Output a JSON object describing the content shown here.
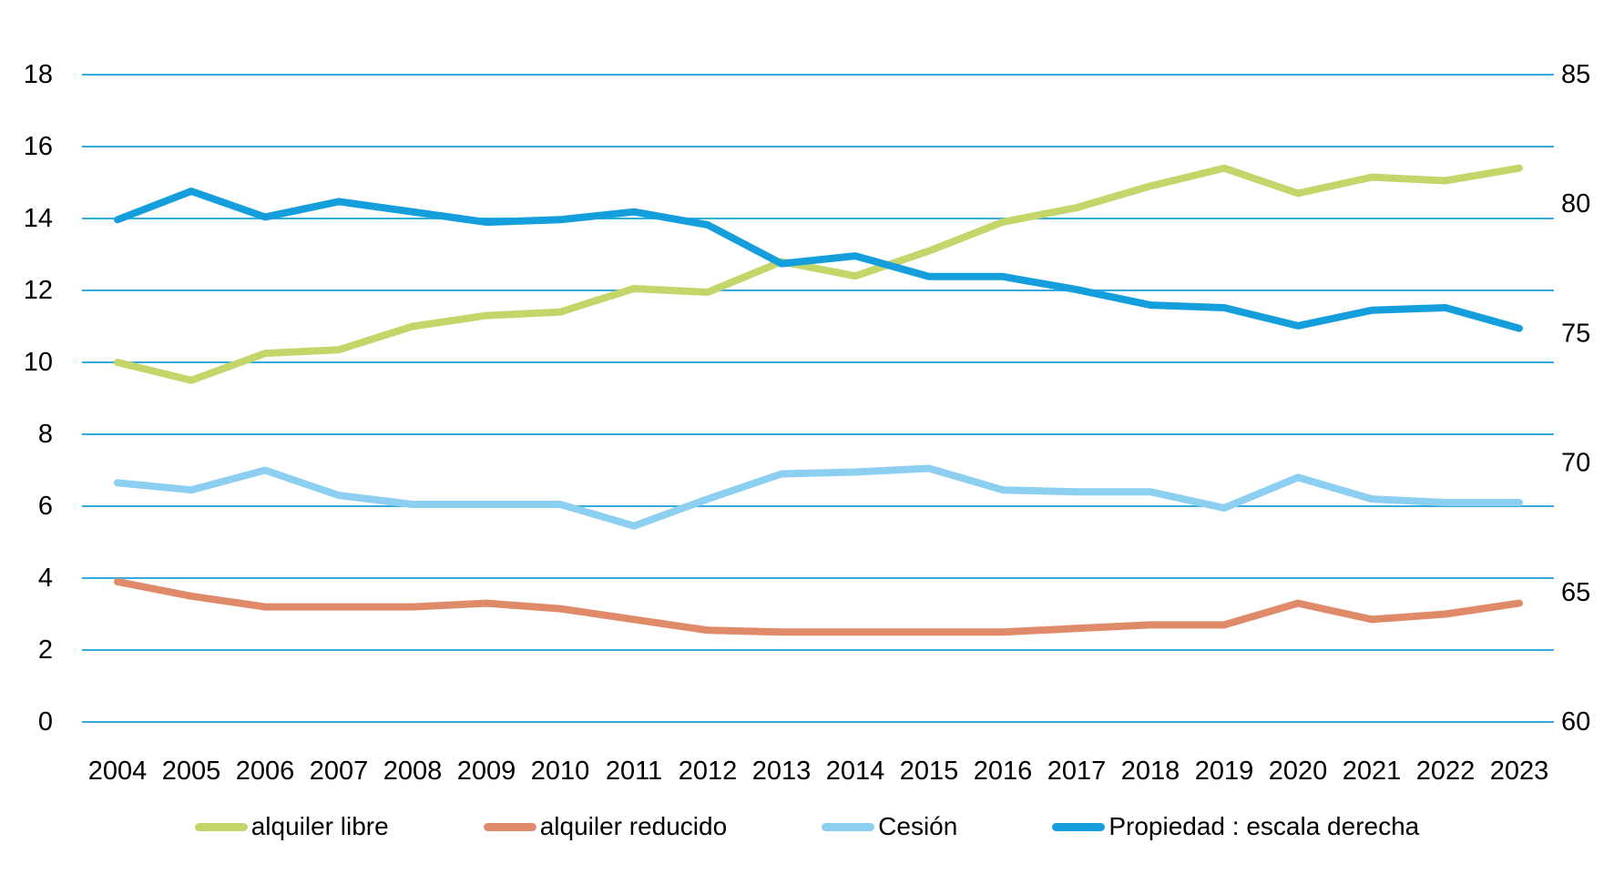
{
  "colors": {
    "background": "#ffffff",
    "gridline": "#33abe1",
    "text": "#000000"
  },
  "chart_data": {
    "type": "line",
    "title": "",
    "xlabel": "",
    "ylabel": "",
    "grid": true,
    "legend_position": "bottom",
    "x": [
      2004,
      2005,
      2006,
      2007,
      2008,
      2009,
      2010,
      2011,
      2012,
      2013,
      2014,
      2015,
      2016,
      2017,
      2018,
      2019,
      2020,
      2021,
      2022,
      2023
    ],
    "left_axis": {
      "min": 0,
      "max": 18,
      "ticks": [
        0,
        2,
        4,
        6,
        8,
        10,
        12,
        14,
        16,
        18
      ]
    },
    "right_axis": {
      "min": 60,
      "max": 85,
      "ticks": [
        60,
        65,
        70,
        75,
        80,
        85
      ]
    },
    "series": [
      {
        "name": "alquiler libre",
        "axis": "left",
        "color": "#c3d669",
        "values": [
          10.0,
          9.5,
          10.25,
          10.35,
          11.0,
          11.3,
          11.4,
          12.05,
          11.95,
          12.8,
          12.4,
          13.1,
          13.9,
          14.3,
          14.9,
          15.4,
          14.7,
          15.15,
          15.05,
          15.4
        ]
      },
      {
        "name": "alquiler reducido",
        "axis": "left",
        "color": "#df8a68",
        "values": [
          3.9,
          3.5,
          3.2,
          3.2,
          3.2,
          3.3,
          3.15,
          2.85,
          2.55,
          2.5,
          2.5,
          2.5,
          2.5,
          2.6,
          2.7,
          2.7,
          3.3,
          2.85,
          3.0,
          3.3
        ]
      },
      {
        "name": "Cesión",
        "axis": "left",
        "color": "#8ccff1",
        "values": [
          6.65,
          6.45,
          7.0,
          6.3,
          6.05,
          6.05,
          6.05,
          5.45,
          6.2,
          6.9,
          6.95,
          7.05,
          6.45,
          6.4,
          6.4,
          5.95,
          6.8,
          6.2,
          6.1,
          6.1
        ]
      },
      {
        "name": "Propiedad : escala derecha",
        "axis": "right",
        "color": "#149fdc",
        "values": [
          79.4,
          80.5,
          79.5,
          80.1,
          79.7,
          79.3,
          79.4,
          79.7,
          79.2,
          77.7,
          78.0,
          77.2,
          77.2,
          76.7,
          76.1,
          76.0,
          75.3,
          75.9,
          76.0,
          75.2
        ]
      }
    ]
  }
}
